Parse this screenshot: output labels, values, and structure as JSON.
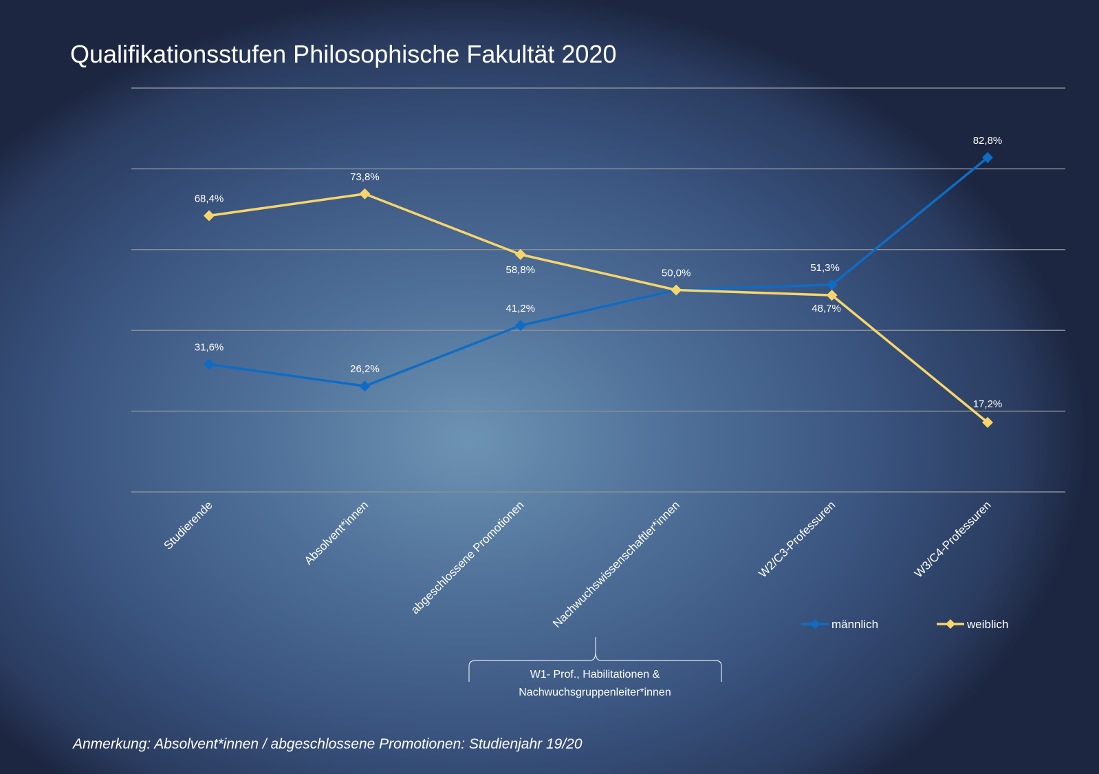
{
  "chart_data": {
    "type": "line",
    "title": "Qualifikationsstufen Philosophische Fakultät 2020",
    "categories": [
      "Studierende",
      "Absolvent*innen",
      "abgeschlossene Promotionen",
      "Nachwuchswissenschaftler*innen",
      "W2/C3-Professuren",
      "W3/C4-Professuren"
    ],
    "series": [
      {
        "name": "männlich",
        "color": "#0f6cc4",
        "values": [
          31.6,
          26.2,
          41.2,
          50.0,
          51.3,
          82.8
        ],
        "labels": [
          "31,6%",
          "26,2%",
          "41,2%",
          "50,0%",
          "51,3%",
          "82,8%"
        ]
      },
      {
        "name": "weiblich",
        "color": "#f7d56a",
        "values": [
          68.4,
          73.8,
          58.8,
          50.0,
          48.7,
          17.2
        ],
        "labels": [
          "68,4%",
          "73,8%",
          "58,8%",
          "",
          "48,7%",
          "17,2%"
        ]
      }
    ],
    "ylim": [
      0,
      100
    ],
    "grid_step": 20,
    "grid": true,
    "legend": "bottom-right",
    "annotation": "W1- Prof., Habilitationen & Nachwuchsgruppenleiter*innen",
    "note": "Anmerkung: Absolvent*innen / abgeschlossene Promotionen: Studienjahr 19/20"
  }
}
